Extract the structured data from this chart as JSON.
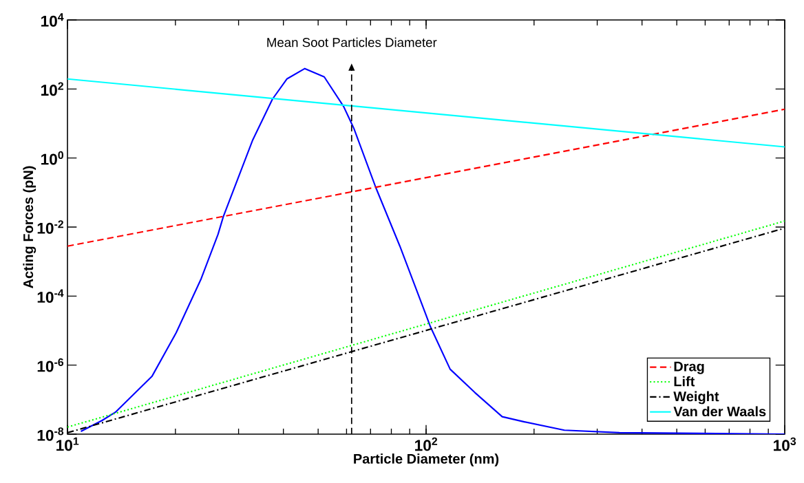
{
  "chart_data": {
    "type": "line",
    "xlabel": "Particle Diameter (nm)",
    "ylabel": "Acting Forces (pN)",
    "log": "xy",
    "xlim": [
      10,
      1000
    ],
    "ylim": [
      1e-08,
      10000
    ],
    "xticks": [
      {
        "value": 10,
        "label": "10$^{1}$"
      },
      {
        "value": 100,
        "label": "10$^{2}$"
      },
      {
        "value": 1000,
        "label": "10$^{3}$"
      }
    ],
    "yticks": [
      {
        "value": 1e-08,
        "label": "10$^{-8}$"
      },
      {
        "value": 1e-06,
        "label": "10$^{-6}$"
      },
      {
        "value": 0.0001,
        "label": "10$^{-4}$"
      },
      {
        "value": 0.01,
        "label": "10$^{-2}$"
      },
      {
        "value": 1,
        "label": "10$^{0}$"
      },
      {
        "value": 100,
        "label": "10$^{2}$"
      },
      {
        "value": 10000,
        "label": "10$^{4}$"
      }
    ],
    "grid": false,
    "legend": "bottom right",
    "series": [
      {
        "color": "#0000ff",
        "line_style": "solid",
        "x": [
          10.9,
          12.5,
          13.6,
          17.2,
          20.1,
          23.6,
          26.3,
          27.2,
          32.8,
          37.3,
          40.9,
          45.9,
          52.0,
          58.9,
          62.9,
          72.4,
          84.5,
          100,
          102.8,
          116.7,
          136.8,
          163,
          187,
          243,
          346,
          1000
        ],
        "values": [
          1.2e-08,
          2.5e-08,
          4.3e-08,
          4.7e-07,
          8.7e-06,
          0.00032,
          0.0062,
          0.02,
          3.2,
          51,
          195,
          390,
          224,
          31,
          7.2,
          0.14,
          0.0028,
          2.8e-05,
          1.3e-05,
          7.6e-07,
          1.6e-07,
          3.2e-08,
          2.3e-08,
          1.3e-08,
          1.1e-08,
          1e-08
        ]
      },
      {
        "name": "Drag",
        "color": "#ff0000",
        "line_style": "dashed",
        "x": [
          10,
          1000
        ],
        "values": [
          0.0028,
          26
        ]
      },
      {
        "name": "Lift",
        "color": "#00ff00",
        "line_style": "dotted",
        "x": [
          10,
          1000
        ],
        "values": [
          1.6e-08,
          0.015
        ]
      },
      {
        "name": "Weight",
        "color": "#000000",
        "line_style": "dashdot",
        "x": [
          10,
          1000
        ],
        "values": [
          1.1e-08,
          0.0093
        ]
      },
      {
        "name": "Van der Waals",
        "color": "#00ffff",
        "line_style": "solid",
        "x": [
          10,
          1000
        ],
        "values": [
          195,
          2.1
        ]
      }
    ],
    "ref_lines": [
      {
        "axis": "x",
        "value": 62,
        "label": "Mean Soot Particles Diameter",
        "color": "#000000",
        "line_style": "dashed"
      }
    ]
  }
}
